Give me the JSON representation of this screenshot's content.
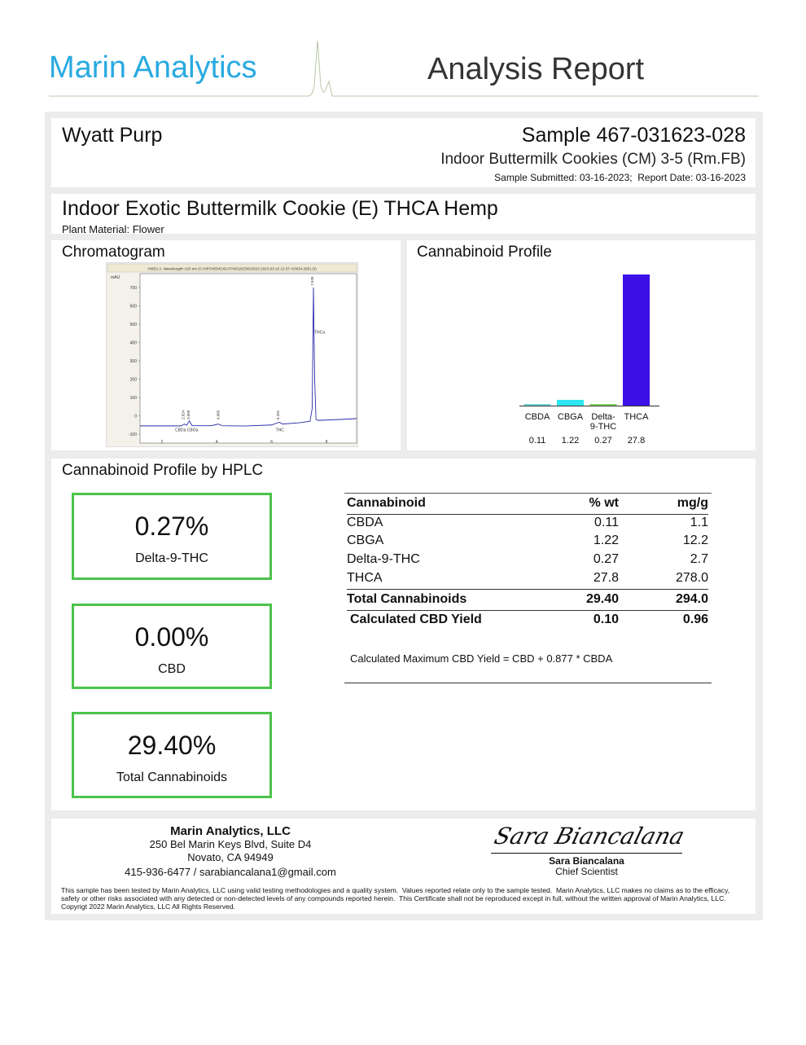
{
  "header": {
    "brand": "Marin Analytics",
    "title": "Analysis Report",
    "brand_color": "#29aae1"
  },
  "client": "Wyatt Purp",
  "sample": {
    "id": "Sample 467-031623-028",
    "name": "Indoor Buttermilk Cookies (CM) 3-5 (Rm.FB)",
    "dates": "Sample Submitted: 03-16-2023;  Report Date: 03-16-2023"
  },
  "product": {
    "title": "Indoor Exotic Buttermilk Cookie (E) THCA Hemp",
    "material": "Plant Material: Flower"
  },
  "chromatogram": {
    "heading": "Chromatogram"
  },
  "profile": {
    "heading": "Cannabinoid Profile"
  },
  "chart_data": [
    {
      "type": "line",
      "title": "VWD1 A, Wavelength=220 nm (C:\\HPCHEM\\1\\DATA\\031623\\031623 2023-03-16 12-57-41\\034-2601.D)",
      "ylabel": "mAU",
      "xlabel": "min",
      "xlim": [
        1.2,
        9.1
      ],
      "ylim": [
        -100,
        760
      ],
      "yticks": [
        -100,
        0,
        100,
        200,
        300,
        400,
        500,
        600,
        700
      ],
      "xticks": [
        2,
        4,
        6,
        8
      ],
      "x": [
        1.2,
        2.7,
        2.82,
        2.9,
        3.0,
        3.1,
        3.8,
        4.05,
        4.2,
        5.0,
        6.0,
        6.28,
        6.4,
        7.0,
        7.4,
        7.48,
        7.526,
        7.57,
        7.62,
        7.7,
        8.5,
        9.1
      ],
      "y": [
        -55,
        -55,
        -45,
        -52,
        -28,
        -54,
        -54,
        -45,
        -54,
        -56,
        -50,
        -35,
        -45,
        -38,
        -30,
        40,
        700,
        200,
        -20,
        -25,
        -20,
        -15
      ],
      "peak_labels": [
        {
          "rt": "2.824",
          "x": 2.824
        },
        {
          "rt": "3.009",
          "x": 3.009
        },
        {
          "rt": "4.089",
          "x": 4.089
        },
        {
          "rt": "6.281",
          "x": 6.281
        },
        {
          "rt": "7.526",
          "x": 7.526
        }
      ],
      "compound_labels": [
        {
          "text": "CBDa CBGa",
          "x": 2.9,
          "y": -85
        },
        {
          "text": "THC",
          "x": 6.3,
          "y": -85
        },
        {
          "text": "THCa",
          "x": 7.75,
          "y": 450
        }
      ]
    },
    {
      "type": "bar",
      "categories": [
        "CBDA",
        "CBGA",
        "Delta-9-THC",
        "THCA"
      ],
      "category_labels": [
        [
          "CBDA"
        ],
        [
          "CBGA"
        ],
        [
          "Delta-",
          "9-THC"
        ],
        [
          "THCA"
        ]
      ],
      "values": [
        0.11,
        1.22,
        0.27,
        27.8
      ],
      "value_labels": [
        "0.11",
        "1.22",
        "0.27",
        "27.8"
      ],
      "colors": [
        "#6fd6d6",
        "#2de6f0",
        "#7fd65a",
        "#3d10e8"
      ],
      "ylim": [
        0,
        27.8
      ]
    }
  ],
  "hplc": {
    "heading": "Cannabinoid Profile by HPLC",
    "cards": [
      {
        "value": "0.27%",
        "label": "Delta-9-THC"
      },
      {
        "value": "0.00%",
        "label": "CBD"
      },
      {
        "value": "29.40%",
        "label": "Total Cannabinoids"
      }
    ],
    "table": {
      "headers": [
        "Cannabinoid",
        "% wt",
        "mg/g"
      ],
      "rows": [
        [
          "CBDA",
          "0.11",
          "1.1"
        ],
        [
          "CBGA",
          "1.22",
          "12.2"
        ],
        [
          "Delta-9-THC",
          "0.27",
          "2.7"
        ],
        [
          "THCA",
          "27.8",
          "278.0"
        ]
      ],
      "total": [
        "Total Cannabinoids",
        "29.40",
        "294.0"
      ],
      "cbd_yield": [
        "Calculated CBD Yield",
        "0.10",
        "0.96"
      ],
      "formula": "Calculated Maximum CBD Yield = CBD + 0.877 * CBDA"
    }
  },
  "footer": {
    "company": "Marin Analytics, LLC",
    "address1": "250 Bel Marin Keys Blvd, Suite D4",
    "address2": "Novato, CA 94949",
    "contact": "415-936-6477 / sarabiancalana1@gmail.com",
    "signature": "Sara Biancalana",
    "signer": "Sara Biancalana",
    "signer_title": "Chief Scientist",
    "disclaimer": "This sample has been tested by Marin Analytics, LLC using valid testing methodologies and a quality system.  Values reported relate only to the sample tested.  Marin Analytics, LLC makes no claims as to the efficacy, safety or other risks associated with any detected or non-detected levels of any compounds reported herein.  This Certificate shall not be reproduced except in full, without the written approval of Marin Analytics, LLC.      Copyrigt 2022 Marin Analytics, LLC All Rights Reserved."
  }
}
